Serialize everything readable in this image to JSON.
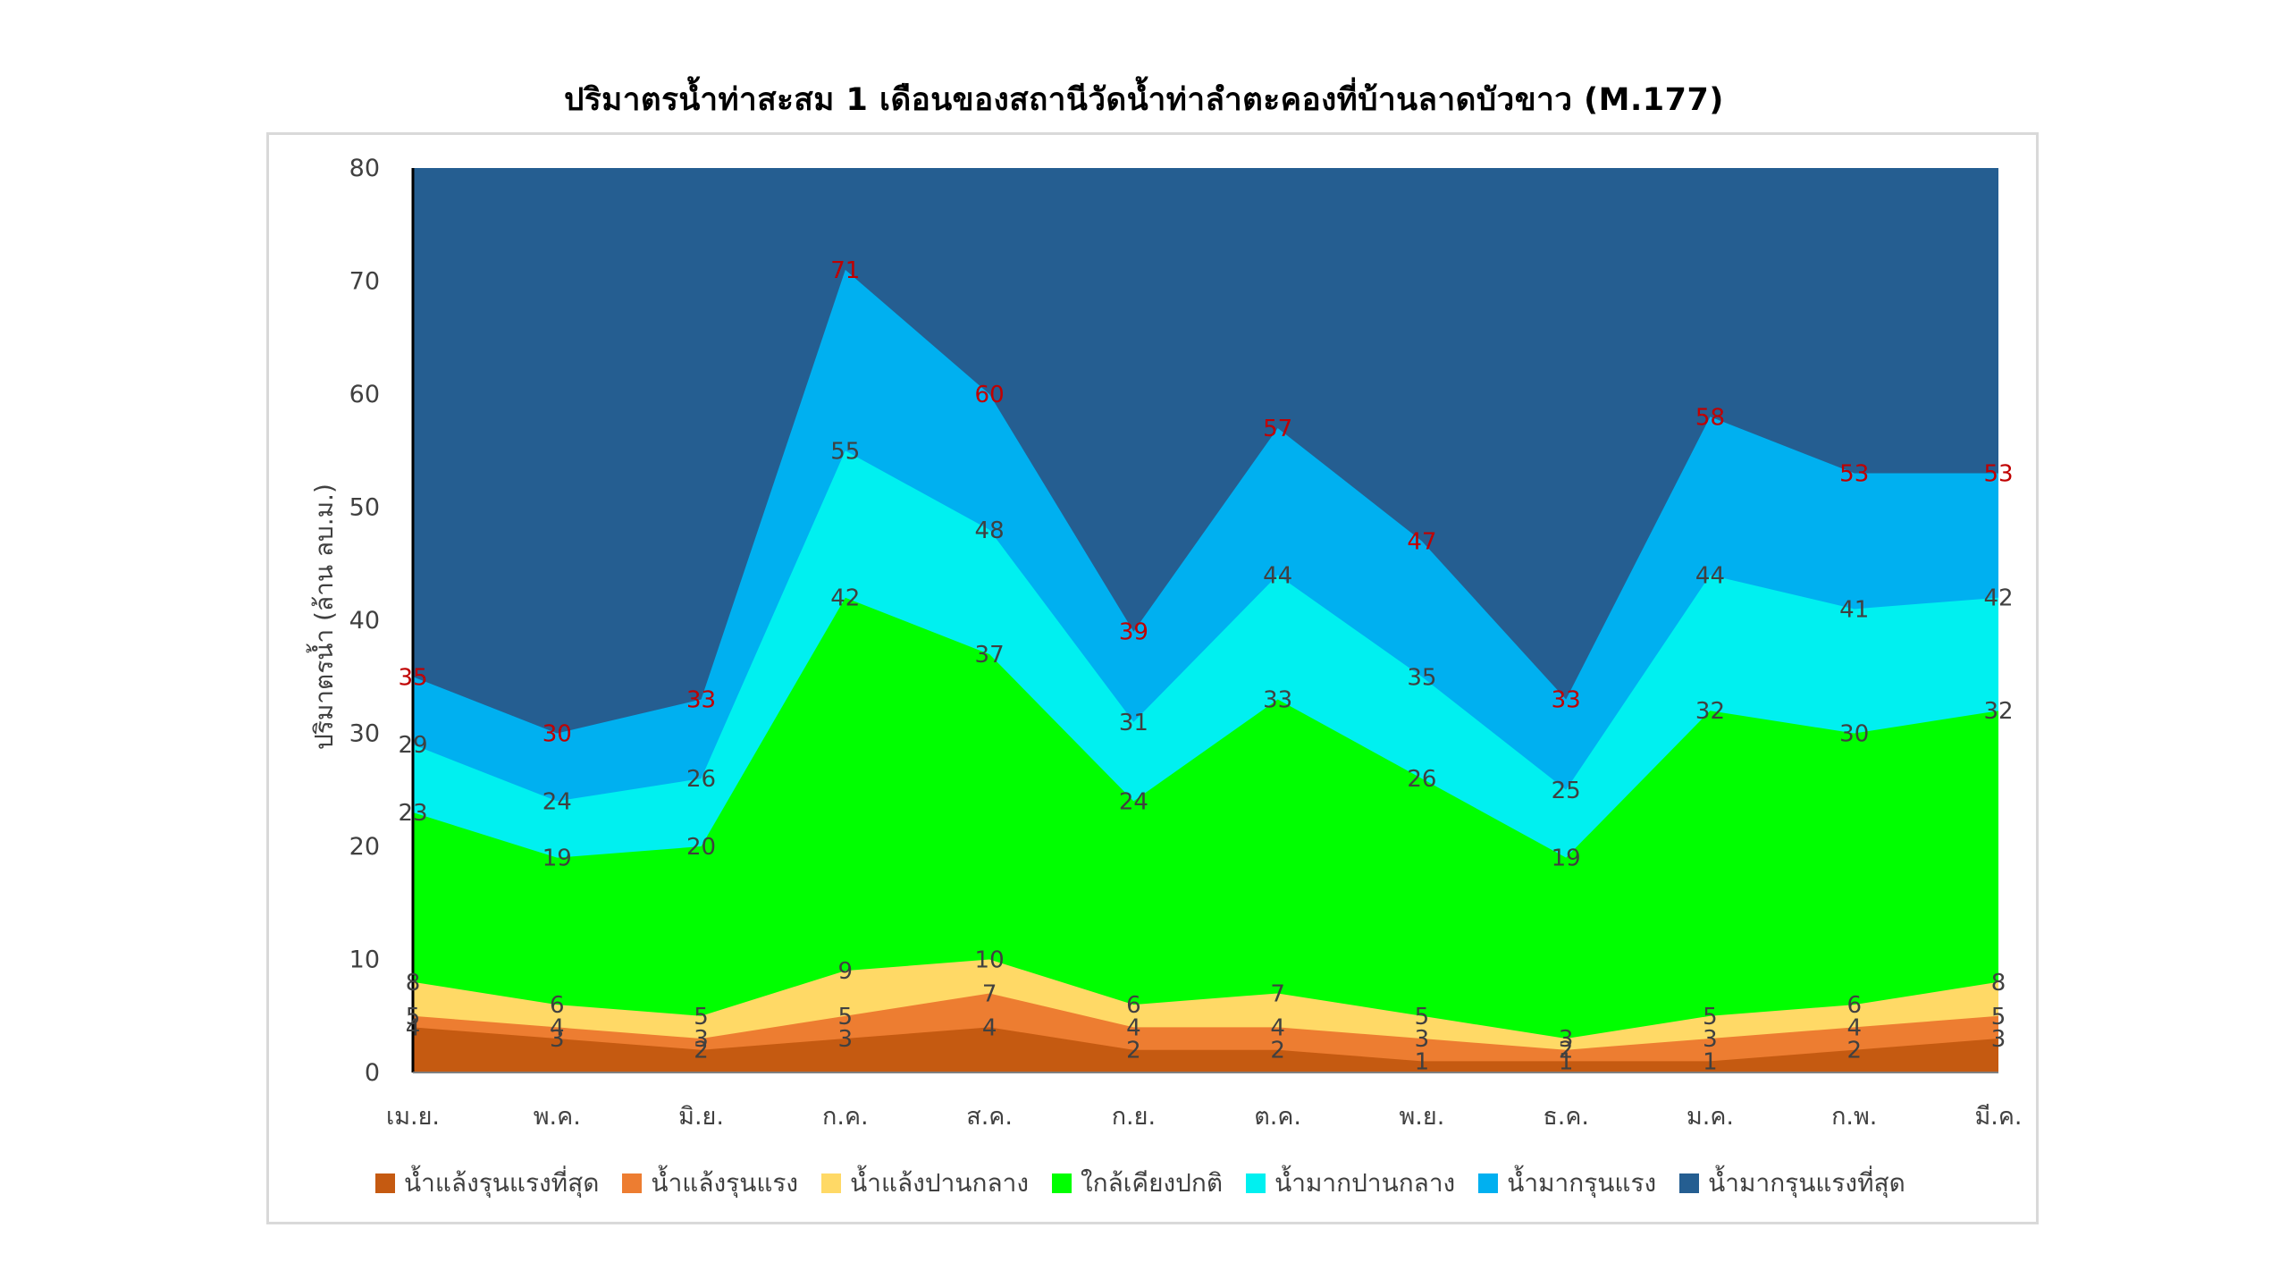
{
  "chart_data": {
    "type": "area",
    "stacked": false,
    "title": "ปริมาตรน้ำท่าสะสม 1 เดือนของสถานีวัดน้ำท่าลำตะคองที่บ้านลาดบัวขาว (M.177)",
    "ylabel": "ปริมาตรน้ำ (ล้าน ลบ.ม.)",
    "xlabel": "",
    "ylim": [
      0,
      80
    ],
    "yticks": [
      0,
      10,
      20,
      30,
      40,
      50,
      60,
      70,
      80
    ],
    "grid": false,
    "legend_position": "bottom",
    "categories": [
      "เม.ย.",
      "พ.ค.",
      "มิ.ย.",
      "ก.ค.",
      "ส.ค.",
      "ก.ย.",
      "ต.ค.",
      "พ.ย.",
      "ธ.ค.",
      "ม.ค.",
      "ก.พ.",
      "มี.ค."
    ],
    "series": [
      {
        "name": "น้ำแล้งรุนแรงที่สุด",
        "color": "#c55a11",
        "values": [
          4,
          3,
          2,
          3,
          4,
          2,
          2,
          1,
          1,
          1,
          2,
          3
        ],
        "label_color": "#404040"
      },
      {
        "name": "น้ำแล้งรุนแรง",
        "color": "#ed7d31",
        "values": [
          5,
          4,
          3,
          5,
          7,
          4,
          4,
          3,
          2,
          3,
          4,
          5
        ],
        "label_color": "#404040"
      },
      {
        "name": "น้ำแล้งปานกลาง",
        "color": "#ffd966",
        "values": [
          8,
          6,
          5,
          9,
          10,
          6,
          7,
          5,
          3,
          5,
          6,
          8
        ],
        "label_color": "#404040"
      },
      {
        "name": "ใกล้เคียงปกติ",
        "color": "#00ff00",
        "values": [
          23,
          19,
          20,
          42,
          37,
          24,
          33,
          26,
          19,
          32,
          30,
          32
        ],
        "label_color": "#404040"
      },
      {
        "name": "น้ำมากปานกลาง",
        "color": "#00f0f0",
        "values": [
          29,
          24,
          26,
          55,
          48,
          31,
          44,
          35,
          25,
          44,
          41,
          42
        ],
        "label_color": "#404040"
      },
      {
        "name": "น้ำมากรุนแรง",
        "color": "#00b0f0",
        "values": [
          35,
          30,
          33,
          71,
          60,
          39,
          57,
          47,
          33,
          58,
          53,
          53
        ],
        "label_color": "#c00000"
      },
      {
        "name": "น้ำมากรุนแรงที่สุด",
        "color": "#255e91",
        "values": [
          80,
          80,
          80,
          80,
          80,
          80,
          80,
          80,
          80,
          80,
          80,
          80
        ],
        "label_color": null
      }
    ]
  }
}
